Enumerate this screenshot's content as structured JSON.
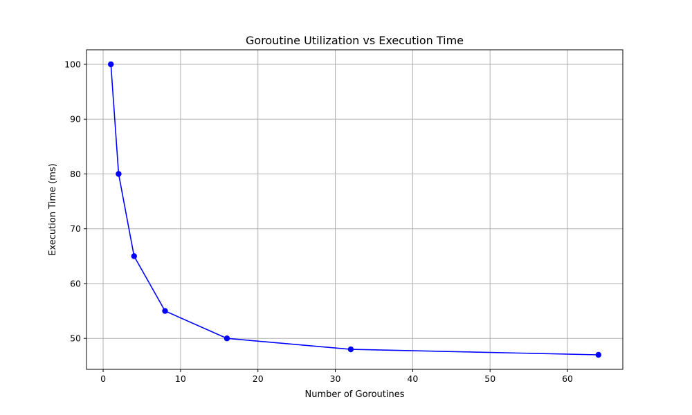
{
  "chart_data": {
    "type": "line",
    "title": "Goroutine Utilization vs Execution Time",
    "xlabel": "Number of Goroutines",
    "ylabel": "Execution Time (ms)",
    "x": [
      1,
      2,
      4,
      8,
      16,
      32,
      64
    ],
    "series": [
      {
        "values": [
          100,
          80,
          65,
          55,
          50,
          48,
          47
        ],
        "color": "#0000ff",
        "marker": "circle"
      }
    ],
    "xlim": [
      -2.15,
      67.15
    ],
    "ylim": [
      44.35,
      102.65
    ],
    "xticks": [
      0,
      10,
      20,
      30,
      40,
      50,
      60
    ],
    "yticks": [
      50,
      60,
      70,
      80,
      90,
      100
    ],
    "grid": true,
    "legend": "none",
    "grid_color": "#b0b0b0"
  }
}
